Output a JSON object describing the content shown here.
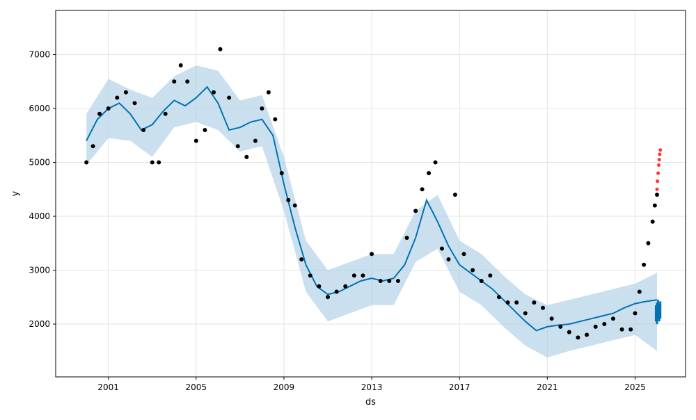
{
  "chart_data": {
    "type": "line",
    "title": "",
    "xlabel": "ds",
    "ylabel": "y",
    "xlim": [
      1998.6,
      2027.3
    ],
    "ylim": [
      1020,
      7820
    ],
    "x_ticks": [
      2001,
      2005,
      2009,
      2013,
      2017,
      2021,
      2025
    ],
    "x_tick_labels": [
      "2001",
      "2005",
      "2009",
      "2013",
      "2017",
      "2021",
      "2025"
    ],
    "y_ticks": [
      2000,
      3000,
      4000,
      5000,
      6000,
      7000
    ],
    "y_tick_labels": [
      "2000",
      "3000",
      "4000",
      "5000",
      "6000",
      "7000"
    ],
    "grid": true,
    "colors": {
      "observed": "#000000",
      "forecast_line": "#0072B2",
      "uncertainty_band": "#A8CCE4",
      "highlighted_points": "#FF0000"
    },
    "observed": {
      "x": [
        2000.0,
        2000.3,
        2000.6,
        2001.0,
        2001.4,
        2001.8,
        2002.2,
        2002.6,
        2003.0,
        2003.3,
        2003.6,
        2004.0,
        2004.3,
        2004.6,
        2005.0,
        2005.4,
        2005.8,
        2006.1,
        2006.5,
        2006.9,
        2007.3,
        2007.7,
        2008.0,
        2008.3,
        2008.6,
        2008.9,
        2009.2,
        2009.5,
        2009.8,
        2010.2,
        2010.6,
        2011.0,
        2011.4,
        2011.8,
        2012.2,
        2012.6,
        2013.0,
        2013.4,
        2013.8,
        2014.2,
        2014.6,
        2015.0,
        2015.3,
        2015.6,
        2015.9,
        2016.2,
        2016.5,
        2016.8,
        2017.2,
        2017.6,
        2018.0,
        2018.4,
        2018.8,
        2019.2,
        2019.6,
        2020.0,
        2020.4,
        2020.8,
        2021.2,
        2021.6,
        2022.0,
        2022.4,
        2022.8,
        2023.2,
        2023.6,
        2024.0,
        2024.4,
        2024.8,
        2025.0,
        2025.2,
        2025.4,
        2025.6,
        2025.8,
        2025.9,
        2026.0
      ],
      "y": [
        5000,
        5300,
        5900,
        6000,
        6200,
        6300,
        6100,
        5600,
        5000,
        5000,
        5900,
        6500,
        6800,
        6500,
        5400,
        5600,
        6300,
        7100,
        6200,
        5300,
        5100,
        5400,
        6000,
        6300,
        5800,
        4800,
        4300,
        4200,
        3200,
        2900,
        2700,
        2500,
        2600,
        2700,
        2900,
        2900,
        3300,
        2800,
        2800,
        2800,
        3600,
        4100,
        4500,
        4800,
        5000,
        3400,
        3200,
        4400,
        3300,
        3000,
        2800,
        2900,
        2500,
        2400,
        2400,
        2200,
        2400,
        2300,
        2100,
        1950,
        1850,
        1750,
        1800,
        1950,
        2000,
        2100,
        1900,
        1900,
        2200,
        2600,
        3100,
        3500,
        3900,
        4200,
        4400
      ]
    },
    "highlighted_points": {
      "x": [
        2026.0,
        2026.02,
        2026.05,
        2026.08,
        2026.1,
        2026.12,
        2026.15
      ],
      "y": [
        4500,
        4650,
        4800,
        4950,
        5050,
        5150,
        5230
      ]
    },
    "forecast": {
      "x": [
        2000.0,
        2000.5,
        2001.0,
        2001.5,
        2002.0,
        2002.5,
        2003.0,
        2003.5,
        2004.0,
        2004.5,
        2005.0,
        2005.5,
        2006.0,
        2006.5,
        2007.0,
        2007.5,
        2008.0,
        2008.5,
        2009.0,
        2009.5,
        2010.0,
        2010.5,
        2011.0,
        2011.5,
        2012.0,
        2012.5,
        2013.0,
        2013.5,
        2014.0,
        2014.5,
        2015.0,
        2015.5,
        2016.0,
        2016.5,
        2017.0,
        2017.5,
        2018.0,
        2018.5,
        2019.0,
        2019.5,
        2020.0,
        2020.5,
        2021.0,
        2021.5,
        2022.0,
        2022.5,
        2023.0,
        2023.5,
        2024.0,
        2024.5,
        2025.0,
        2025.5,
        2026.0
      ],
      "y": [
        5400,
        5800,
        6000,
        6100,
        5900,
        5600,
        5700,
        5950,
        6150,
        6050,
        6200,
        6400,
        6100,
        5600,
        5650,
        5750,
        5800,
        5500,
        4600,
        3800,
        3100,
        2700,
        2550,
        2600,
        2700,
        2800,
        2850,
        2800,
        2850,
        3100,
        3600,
        4300,
        3900,
        3450,
        3100,
        2950,
        2800,
        2650,
        2450,
        2250,
        2050,
        1880,
        1950,
        1980,
        2000,
        2050,
        2100,
        2150,
        2200,
        2300,
        2380,
        2420,
        2450
      ]
    },
    "forecast_spread": {
      "x": [
        2025.95,
        2026.0,
        2026.05,
        2026.1,
        2026.15
      ],
      "y_low": [
        2050,
        2000,
        2100,
        2050,
        2100
      ],
      "y_high": [
        2350,
        2400,
        2450,
        2380,
        2420
      ]
    },
    "band": {
      "x": [
        2000.0,
        2001.0,
        2002.0,
        2003.0,
        2004.0,
        2005.0,
        2006.0,
        2007.0,
        2008.0,
        2009.0,
        2010.0,
        2011.0,
        2012.0,
        2013.0,
        2014.0,
        2015.0,
        2016.0,
        2017.0,
        2018.0,
        2019.0,
        2020.0,
        2021.0,
        2022.0,
        2023.0,
        2024.0,
        2025.0,
        2026.0
      ],
      "lower": [
        4950,
        5450,
        5400,
        5100,
        5650,
        5750,
        5600,
        5200,
        5300,
        4100,
        2600,
        2050,
        2200,
        2350,
        2350,
        3150,
        3400,
        2600,
        2350,
        1950,
        1600,
        1380,
        1500,
        1600,
        1700,
        1800,
        1500
      ],
      "upper": [
        5900,
        6550,
        6350,
        6200,
        6600,
        6800,
        6700,
        6150,
        6250,
        5100,
        3550,
        3000,
        3150,
        3300,
        3300,
        4100,
        4400,
        3550,
        3300,
        2900,
        2550,
        2350,
        2450,
        2550,
        2650,
        2750,
        2950
      ]
    }
  }
}
